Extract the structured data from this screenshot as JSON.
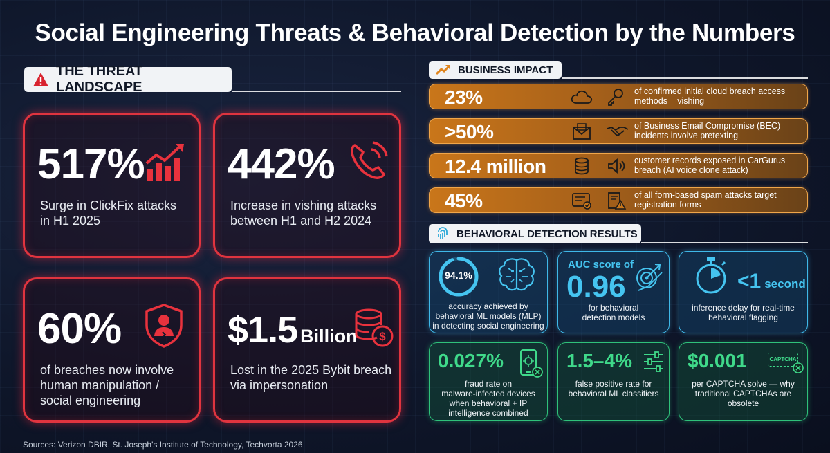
{
  "title": "Social Engineering Threats & Behavioral Detection by the Numbers",
  "threat_landscape": {
    "heading": "THE THREAT LANDSCAPE",
    "cards": [
      {
        "value": "517%",
        "suffix": "",
        "desc": [
          "Surge in ClickFix attacks",
          "in H1 2025"
        ],
        "icon": "rising-bar-chart-icon"
      },
      {
        "value": "442%",
        "suffix": "",
        "desc": [
          "Increase in vishing attacks",
          "between H1 and H2 2024"
        ],
        "icon": "phone-ringing-icon"
      },
      {
        "value": "60%",
        "suffix": "",
        "desc": [
          "of breaches now involve",
          "human manipulation /",
          "social engineering"
        ],
        "icon": "shield-user-icon"
      },
      {
        "value": "$1.5",
        "suffix": "Billion",
        "desc": [
          "Lost in the 2025 Bybit breach",
          "via impersonation"
        ],
        "icon": "coin-stack-icon"
      }
    ]
  },
  "business_impact": {
    "heading": "BUSINESS IMPACT",
    "rows": [
      {
        "value": "23%",
        "desc": [
          "of confirmed initial cloud breach access",
          "methods = vishing"
        ],
        "icons": [
          "cloud-icon",
          "key-icon"
        ]
      },
      {
        "value": ">50%",
        "desc": [
          "of Business Email Compromise (BEC)",
          "incidents involve pretexting"
        ],
        "icons": [
          "envelope-icon",
          "handshake-icon"
        ]
      },
      {
        "value": "12.4 million",
        "desc": [
          "customer records exposed in CarGurus",
          "breach (AI voice clone attack)"
        ],
        "icons": [
          "database-icon",
          "speaker-icon"
        ]
      },
      {
        "value": "45%",
        "desc": [
          "of all form-based spam attacks target",
          "registration forms"
        ],
        "icons": [
          "form-check-icon",
          "document-warning-icon"
        ]
      }
    ]
  },
  "behavioral_detection": {
    "heading": "BEHAVIORAL DETECTION RESULTS",
    "cards": [
      {
        "big": "94.1%",
        "desc": [
          "accuracy achieved by",
          "behavioral ML models (MLP)",
          "in detecting social engineering"
        ],
        "icon": "brain-icon"
      },
      {
        "pre": "AUC score of",
        "big": "0.96",
        "desc": [
          "for behavioral",
          "detection models"
        ],
        "icon": "target-arrow-icon"
      },
      {
        "big": "<1",
        "unit": "second",
        "desc": [
          "inference delay for real-time",
          "behavioral flagging"
        ],
        "icon": "stopwatch-icon"
      },
      {
        "big": "0.027%",
        "desc": [
          "fraud rate on",
          "malware-infected devices",
          "when behavioral + IP",
          "intelligence combined"
        ],
        "icon": "infected-phone-icon"
      },
      {
        "big": "1.5–4%",
        "desc": [
          "false positive rate for",
          "behavioral ML classifiers"
        ],
        "icon": "sliders-icon"
      },
      {
        "big": "$0.001",
        "captcha": "CAPTCHA",
        "desc": [
          "per CAPTCHA solve — why",
          "traditional CAPTCHAs are",
          "obsolete"
        ],
        "icon": "captcha-blocked-icon"
      }
    ]
  },
  "sources": "Sources: Verizon DBIR, St. Joseph's Institute of Technology, Techvorta 2026",
  "colors": {
    "threat_red": "#e0343f",
    "impact_orange": "#c9761a",
    "detect_blue": "#3fb8e8",
    "detect_green": "#2fc17a"
  }
}
